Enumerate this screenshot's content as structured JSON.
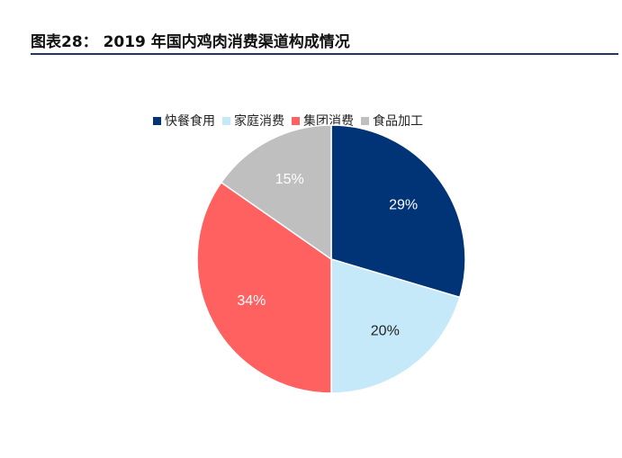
{
  "figure": {
    "title": "图表28： 2019 年国内鸡肉消费渠道构成情况"
  },
  "chart_data": {
    "type": "pie",
    "categories": [
      "快餐食用",
      "家庭消费",
      "集团消费",
      "食品加工"
    ],
    "values": [
      29,
      20,
      34,
      15
    ],
    "labels": [
      "29%",
      "20%",
      "34%",
      "15%"
    ],
    "colors": [
      "#003476",
      "#c5e9f8",
      "#ff6161",
      "#bfbfbf"
    ],
    "label_colors": [
      "#ffffff",
      "#222222",
      "#ffffff",
      "#ffffff"
    ],
    "start_angle": "12 o'clock",
    "direction": "clockwise",
    "legend_position": "top"
  }
}
